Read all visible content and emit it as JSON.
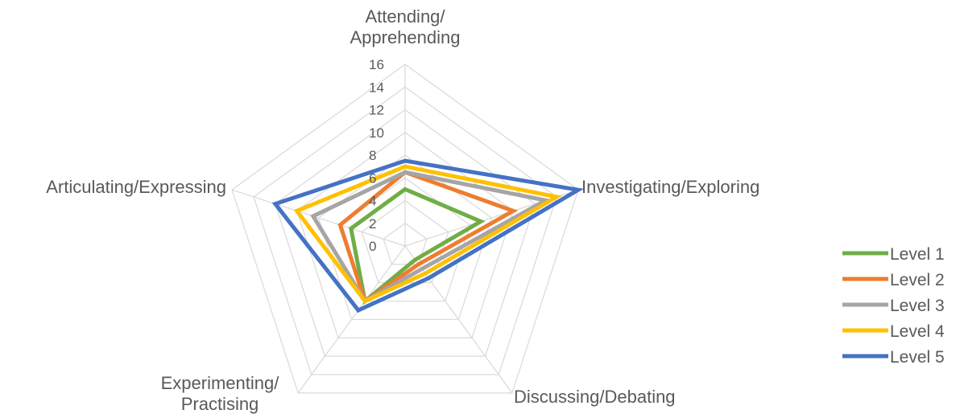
{
  "chart_data": {
    "type": "radar",
    "axes": [
      [
        "Attending/",
        "Apprehending"
      ],
      [
        "Investigating/Exploring"
      ],
      [
        "Discussing/Debating"
      ],
      [
        "Experimenting/",
        "Practising"
      ],
      [
        "Articulating/Expressing"
      ]
    ],
    "rlim": [
      0,
      16
    ],
    "ticks": [
      "0",
      "2",
      "4",
      "6",
      "8",
      "10",
      "12",
      "14",
      "16"
    ],
    "grid": true,
    "legend_position": "right",
    "series": [
      {
        "name": "Level 1",
        "color": "#70AD47",
        "values": [
          5,
          7,
          1.5,
          6,
          5
        ]
      },
      {
        "name": "Level 2",
        "color": "#ED7D31",
        "values": [
          6.5,
          10,
          2,
          6,
          6
        ]
      },
      {
        "name": "Level 3",
        "color": "#A5A5A5",
        "values": [
          6.5,
          13,
          2.5,
          6,
          8.5
        ]
      },
      {
        "name": "Level 4",
        "color": "#FFC000",
        "values": [
          7,
          14,
          3,
          6,
          10
        ]
      },
      {
        "name": "Level 5",
        "color": "#4472C4",
        "values": [
          7.5,
          16,
          3.5,
          7,
          12
        ]
      }
    ]
  }
}
